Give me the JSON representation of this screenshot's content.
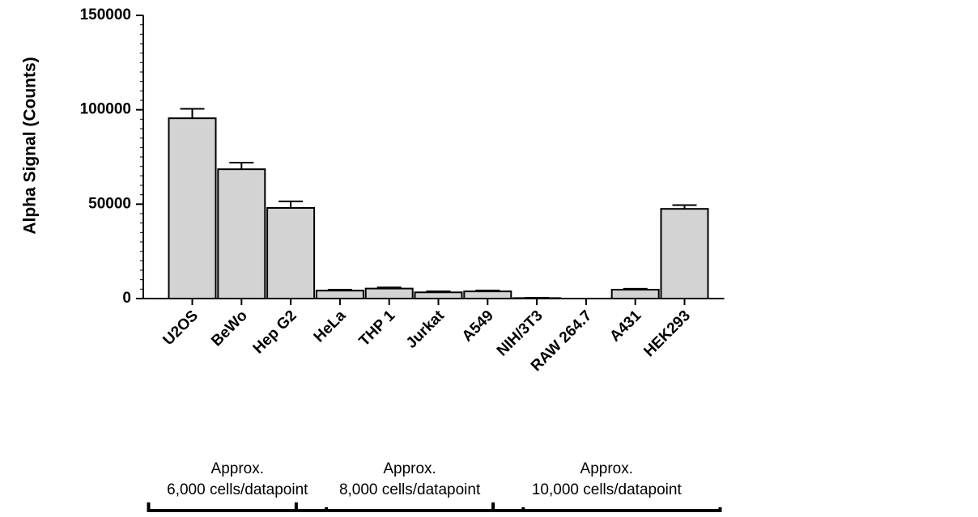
{
  "chart_data": {
    "type": "bar",
    "title": "",
    "xlabel": "",
    "ylabel": "Alpha Signal (Counts)",
    "ylim": [
      0,
      150000
    ],
    "yticks": [
      0,
      50000,
      100000,
      150000
    ],
    "ytick_labels": [
      "0",
      "50000",
      "100000",
      "150000"
    ],
    "categories": [
      "U2OS",
      "BeWo",
      "Hep G2",
      "HeLa",
      "THP 1",
      "Jurkat",
      "A549",
      "NIH/3T3",
      "RAW 264.7",
      "A431",
      "HEK293"
    ],
    "values": [
      95500,
      68500,
      48000,
      4200,
      5300,
      3300,
      3800,
      250,
      0,
      4700,
      47500
    ],
    "errors": [
      5000,
      3500,
      3500,
      500,
      600,
      500,
      500,
      200,
      0,
      500,
      2000
    ],
    "bar_color": "#d3d3d3",
    "edge_color": "#000000",
    "grid": false,
    "groups": [
      {
        "label_line1": "Approx.",
        "label_line2": "6,000 cells/datapoint",
        "first": 0,
        "last": 2
      },
      {
        "label_line1": "Approx.",
        "label_line2": "8,000 cells/datapoint",
        "first": 3,
        "last": 6
      },
      {
        "label_line1": "Approx.",
        "label_line2": "10,000 cells/datapoint",
        "first": 7,
        "last": 10
      }
    ]
  }
}
